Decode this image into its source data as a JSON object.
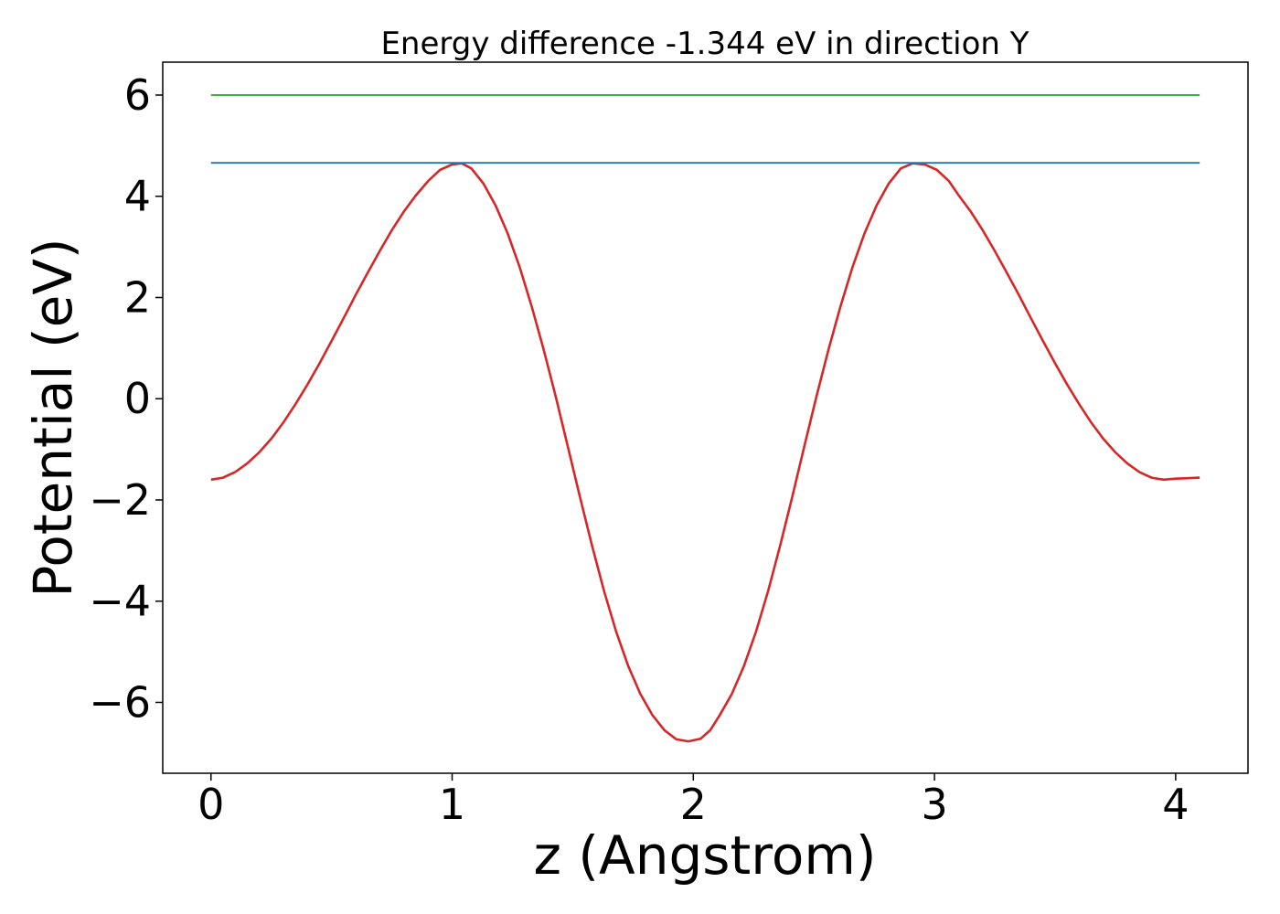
{
  "chart_data": {
    "type": "line",
    "title": "Energy difference -1.344 eV in direction Y",
    "xlabel": "z (Angstrom)",
    "ylabel": "Potential (eV)",
    "xlim": [
      -0.2,
      4.3
    ],
    "ylim": [
      -7.4,
      6.65
    ],
    "xticks": [
      0,
      1,
      2,
      3,
      4
    ],
    "yticks": [
      -6,
      -4,
      -2,
      0,
      2,
      4,
      6
    ],
    "grid": false,
    "legend": "none",
    "series": [
      {
        "color": "#d62728",
        "x": [
          0.0,
          0.05,
          0.1,
          0.15,
          0.2,
          0.25,
          0.3,
          0.35,
          0.4,
          0.45,
          0.5,
          0.55,
          0.6,
          0.65,
          0.7,
          0.75,
          0.8,
          0.85,
          0.9,
          0.95,
          1.0,
          1.04,
          1.08,
          1.13,
          1.18,
          1.23,
          1.28,
          1.33,
          1.38,
          1.43,
          1.48,
          1.53,
          1.58,
          1.63,
          1.68,
          1.73,
          1.78,
          1.83,
          1.88,
          1.93,
          1.98,
          2.03,
          2.07,
          2.11,
          2.16,
          2.21,
          2.26,
          2.31,
          2.36,
          2.41,
          2.46,
          2.51,
          2.56,
          2.61,
          2.66,
          2.71,
          2.76,
          2.81,
          2.86,
          2.91,
          2.96,
          3.01,
          3.06,
          3.1,
          3.15,
          3.2,
          3.25,
          3.3,
          3.35,
          3.4,
          3.45,
          3.5,
          3.55,
          3.6,
          3.65,
          3.7,
          3.75,
          3.8,
          3.85,
          3.9,
          3.95,
          4.0,
          4.05,
          4.1
        ],
        "y": [
          -1.6,
          -1.56,
          -1.45,
          -1.28,
          -1.06,
          -0.79,
          -0.47,
          -0.11,
          0.28,
          0.7,
          1.14,
          1.59,
          2.05,
          2.49,
          2.92,
          3.33,
          3.7,
          4.02,
          4.3,
          4.52,
          4.63,
          4.65,
          4.55,
          4.25,
          3.82,
          3.27,
          2.6,
          1.82,
          0.96,
          0.03,
          -0.95,
          -1.94,
          -2.9,
          -3.8,
          -4.6,
          -5.28,
          -5.83,
          -6.25,
          -6.55,
          -6.73,
          -6.77,
          -6.72,
          -6.55,
          -6.25,
          -5.83,
          -5.28,
          -4.6,
          -3.8,
          -2.9,
          -1.94,
          -0.95,
          0.03,
          0.96,
          1.82,
          2.6,
          3.27,
          3.82,
          4.25,
          4.55,
          4.65,
          4.63,
          4.52,
          4.3,
          4.02,
          3.7,
          3.33,
          2.92,
          2.49,
          2.05,
          1.59,
          1.14,
          0.7,
          0.28,
          -0.11,
          -0.47,
          -0.79,
          -1.06,
          -1.28,
          -1.45,
          -1.56,
          -1.6,
          -1.58,
          -1.57,
          -1.56
        ]
      },
      {
        "color": "#1f77b4",
        "x": [
          0.0,
          4.1
        ],
        "y": [
          4.66,
          4.66
        ]
      },
      {
        "color": "#2ca02c",
        "x": [
          0.0,
          4.1
        ],
        "y": [
          6.0,
          6.0
        ]
      }
    ]
  }
}
